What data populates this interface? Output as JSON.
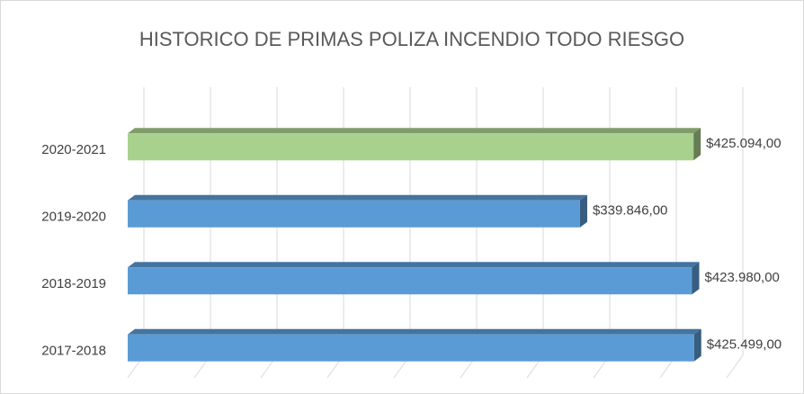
{
  "chart_data": {
    "type": "bar3d",
    "orientation": "horizontal",
    "title": "HISTORICO DE PRIMAS POLIZA INCENDIO TODO RIESGO",
    "categories": [
      "2020-2021",
      "2019-2020",
      "2018-2019",
      "2017-2018"
    ],
    "values": [
      425094,
      339846,
      423980,
      425499
    ],
    "value_labels": [
      "$425.094,00",
      "$339.846,00",
      "$423.980,00",
      "$425.499,00"
    ],
    "colors": [
      "#a9d18e",
      "#5b9bd5",
      "#5b9bd5",
      "#5b9bd5"
    ],
    "xlim": [
      0,
      450000
    ],
    "xticks": [
      0,
      50000,
      100000,
      150000,
      200000,
      250000,
      300000,
      350000,
      400000,
      450000
    ],
    "grid": true
  }
}
